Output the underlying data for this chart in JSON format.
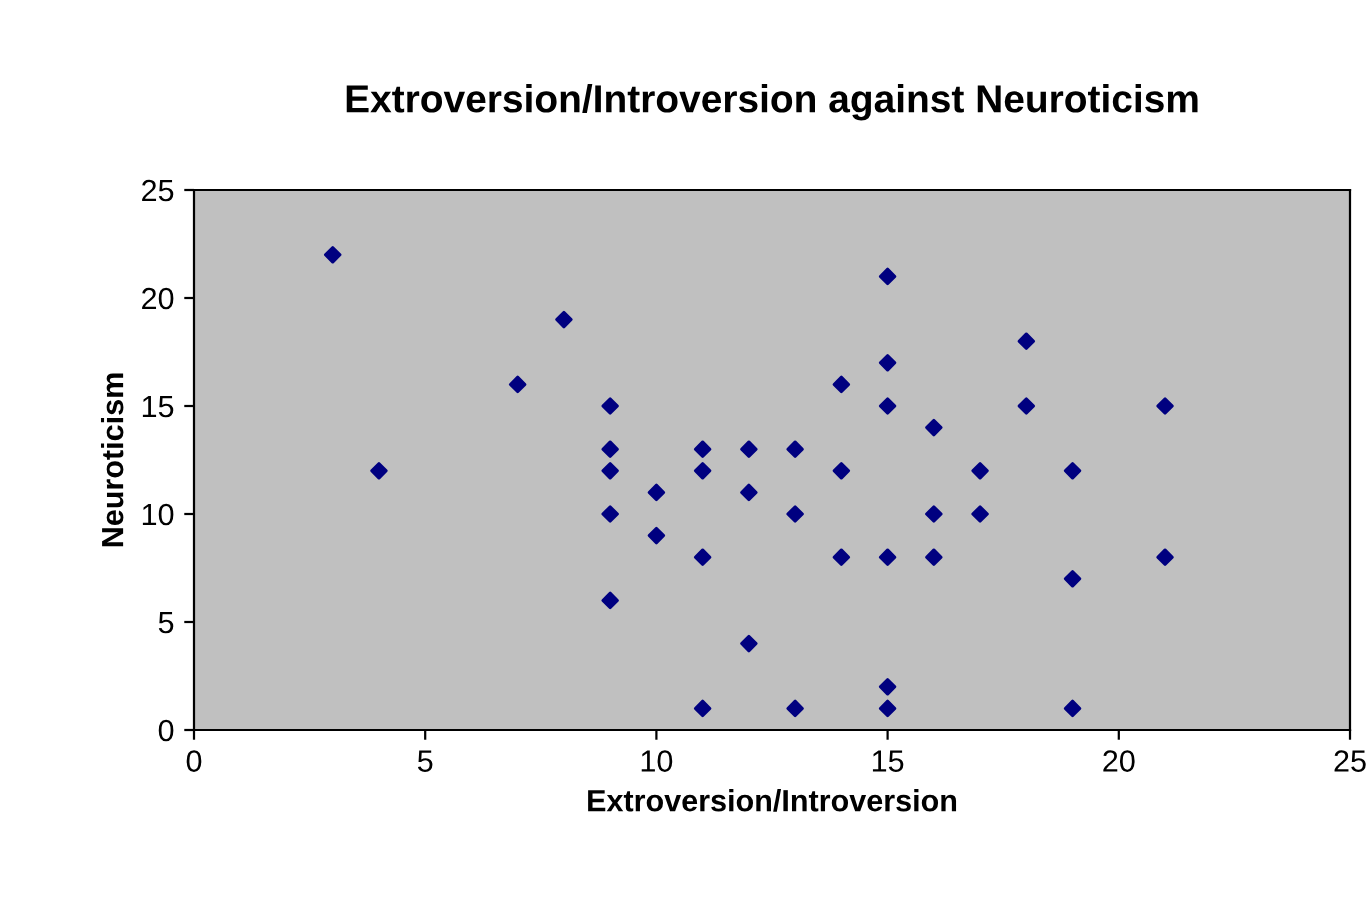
{
  "chart_data": {
    "type": "scatter",
    "title": "Extroversion/Introversion against Neuroticism",
    "xlabel": "Extroversion/Introversion",
    "ylabel": "Neuroticism",
    "series": [
      {
        "color": "#000080",
        "x": [
          3,
          4,
          7,
          8,
          9,
          9,
          9,
          9,
          9,
          10,
          10,
          11,
          11,
          11,
          11,
          12,
          12,
          12,
          13,
          13,
          13,
          14,
          14,
          14,
          15,
          15,
          15,
          15,
          15,
          15,
          16,
          16,
          16,
          17,
          17,
          18,
          18,
          19,
          19,
          19,
          21,
          21
        ],
        "values": [
          22,
          12,
          16,
          19,
          15,
          13,
          12,
          10,
          6,
          11,
          9,
          13,
          12,
          8,
          1,
          13,
          11,
          4,
          13,
          10,
          1,
          16,
          12,
          8,
          21,
          17,
          15,
          8,
          2,
          1,
          14,
          10,
          8,
          12,
          10,
          18,
          15,
          12,
          7,
          1,
          15,
          8
        ]
      }
    ],
    "xlim": [
      0,
      25
    ],
    "ylim": [
      0,
      25
    ],
    "xticks": [
      0,
      5,
      10,
      15,
      20,
      25
    ],
    "yticks": [
      0,
      5,
      10,
      15,
      20,
      25
    ],
    "marker": "diamond",
    "grid": false,
    "legend": false
  }
}
